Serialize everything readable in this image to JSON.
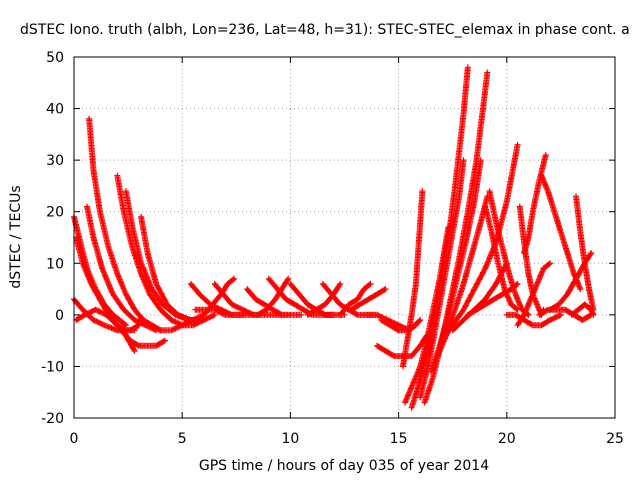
{
  "chart_data": {
    "type": "scatter",
    "title": "dSTEC Iono. truth (albh, Lon=236, Lat=48, h=31): STEC-STEC_elemax in phase cont. a",
    "xlabel": "GPS time / hours of day 035 of year 2014",
    "ylabel": "dSTEC  / TECUs",
    "xlim": [
      0,
      25
    ],
    "ylim": [
      -20,
      50
    ],
    "xticks": [
      0,
      5,
      10,
      15,
      20,
      25
    ],
    "yticks": [
      -20,
      -10,
      0,
      10,
      20,
      30,
      40,
      50
    ],
    "grid": true,
    "marker": "+",
    "color": "#ff0000",
    "series": [
      {
        "x": [
          0.0,
          0.3,
          0.6,
          1.0,
          1.4,
          1.8,
          2.1,
          2.4
        ],
        "y": [
          19,
          14,
          9,
          5,
          2,
          0,
          -1,
          -2
        ]
      },
      {
        "x": [
          0.1,
          0.4,
          0.8,
          1.2,
          1.6,
          2.0,
          2.4,
          2.8
        ],
        "y": [
          15,
          10,
          6,
          3,
          0,
          -2,
          -3,
          -3
        ]
      },
      {
        "x": [
          0.0,
          0.4,
          0.9,
          1.4,
          2.0,
          2.6,
          3.0
        ],
        "y": [
          3,
          1,
          -1,
          -2,
          -3,
          -3,
          -2
        ]
      },
      {
        "x": [
          0.1,
          0.5,
          1.0,
          1.5,
          2.0,
          2.4,
          2.8
        ],
        "y": [
          -1,
          0,
          1,
          0,
          -2,
          -4,
          -7
        ]
      },
      {
        "x": [
          0.6,
          0.9,
          1.3,
          1.8,
          2.3,
          2.8,
          3.3,
          3.8
        ],
        "y": [
          21,
          15,
          9,
          4,
          1,
          -1,
          -2,
          -3
        ]
      },
      {
        "x": [
          0.7,
          0.9,
          1.2,
          1.6,
          2.0,
          2.4,
          2.8,
          3.2,
          3.6,
          4.0
        ],
        "y": [
          38,
          28,
          20,
          13,
          8,
          4,
          1,
          -1,
          -2,
          -3
        ]
      },
      {
        "x": [
          2.0,
          2.3,
          2.7,
          3.1,
          3.5,
          4.0,
          4.5,
          5.0,
          5.5,
          6.0
        ],
        "y": [
          27,
          20,
          13,
          8,
          4,
          1,
          -1,
          -2,
          -2,
          -1
        ]
      },
      {
        "x": [
          2.4,
          2.7,
          3.1,
          3.6,
          4.1,
          4.7,
          5.3,
          6.0
        ],
        "y": [
          24,
          17,
          10,
          5,
          2,
          0,
          -1,
          -1
        ]
      },
      {
        "x": [
          3.1,
          3.4,
          3.8,
          4.3,
          4.8,
          5.4,
          6.0,
          6.5
        ],
        "y": [
          19,
          12,
          6,
          2,
          0,
          -1,
          -1,
          0
        ]
      },
      {
        "x": [
          2.2,
          2.6,
          3.0,
          3.4,
          3.8,
          4.2
        ],
        "y": [
          -3,
          -5,
          -6,
          -6,
          -6,
          -5
        ]
      },
      {
        "x": [
          3.0,
          3.5,
          4.0,
          4.5,
          5.0,
          5.5,
          6.0
        ],
        "y": [
          -1,
          -2,
          -3,
          -3,
          -2,
          -1,
          0
        ]
      },
      {
        "x": [
          5.4,
          5.8,
          6.3,
          6.8,
          7.3,
          7.8
        ],
        "y": [
          6,
          4,
          2,
          1,
          0,
          0
        ]
      },
      {
        "x": [
          5.6,
          6.0,
          6.5,
          7.0,
          7.5,
          8.0,
          8.5
        ],
        "y": [
          1,
          1,
          1,
          0,
          0,
          0,
          0
        ]
      },
      {
        "x": [
          6.5,
          6.9,
          7.3,
          7.8,
          8.3,
          8.8,
          9.3,
          9.8
        ],
        "y": [
          6,
          4,
          2,
          1,
          0,
          0,
          0,
          0
        ]
      },
      {
        "x": [
          6.0,
          6.4,
          6.8,
          7.1,
          7.4
        ],
        "y": [
          0,
          2,
          4,
          6,
          7
        ]
      },
      {
        "x": [
          8.0,
          8.4,
          8.8,
          9.2,
          9.6,
          10.0,
          10.5
        ],
        "y": [
          5,
          3,
          2,
          1,
          0,
          0,
          0
        ]
      },
      {
        "x": [
          8.5,
          8.9,
          9.3,
          9.6,
          9.9
        ],
        "y": [
          0,
          1,
          3,
          5,
          7
        ]
      },
      {
        "x": [
          9.0,
          9.4,
          9.8,
          10.2,
          10.6,
          11.0,
          11.5,
          12.0
        ],
        "y": [
          7,
          5,
          3,
          2,
          1,
          0,
          0,
          0
        ]
      },
      {
        "x": [
          10.0,
          10.4,
          10.8,
          11.2,
          11.6,
          12.0,
          12.5
        ],
        "y": [
          6,
          4,
          2,
          1,
          0,
          0,
          0
        ]
      },
      {
        "x": [
          10.8,
          11.2,
          11.6,
          12.0,
          12.3
        ],
        "y": [
          0,
          1,
          2,
          4,
          6
        ]
      },
      {
        "x": [
          11.5,
          11.9,
          12.3,
          12.7,
          13.1,
          13.5,
          14.0
        ],
        "y": [
          6,
          4,
          2,
          1,
          0,
          0,
          0
        ]
      },
      {
        "x": [
          12.3,
          12.7,
          13.1,
          13.4,
          13.7
        ],
        "y": [
          0,
          2,
          3,
          5,
          6
        ]
      },
      {
        "x": [
          12.8,
          13.2,
          13.6,
          14.0,
          14.4
        ],
        "y": [
          1,
          2,
          3,
          4,
          5
        ]
      },
      {
        "x": [
          13.5,
          14.0,
          14.5,
          15.0,
          15.5,
          16.0
        ],
        "y": [
          0,
          0,
          -1,
          -2,
          -3,
          -1
        ]
      },
      {
        "x": [
          14.2,
          14.6,
          15.0,
          15.4,
          15.8
        ],
        "y": [
          -1,
          -2,
          -3,
          -3,
          -2
        ]
      },
      {
        "x": [
          14.0,
          14.4,
          14.8,
          15.2,
          15.6,
          16.0,
          16.3
        ],
        "y": [
          -6,
          -7,
          -8,
          -8,
          -8,
          -6,
          -4
        ]
      },
      {
        "x": [
          15.2,
          15.4,
          15.6,
          15.8,
          15.9,
          16.0,
          16.1
        ],
        "y": [
          -10,
          -5,
          0,
          6,
          12,
          18,
          24
        ]
      },
      {
        "x": [
          15.3,
          15.6,
          16.0,
          16.3,
          16.6,
          16.9,
          17.1,
          17.3
        ],
        "y": [
          -17,
          -14,
          -10,
          -5,
          1,
          7,
          12,
          17
        ]
      },
      {
        "x": [
          15.6,
          15.9,
          16.2,
          16.5,
          16.8,
          17.1,
          17.4,
          17.7,
          18.0,
          18.2
        ],
        "y": [
          -18,
          -14,
          -9,
          -4,
          3,
          10,
          18,
          28,
          39,
          48
        ]
      },
      {
        "x": [
          16.0,
          16.3,
          16.6,
          16.9,
          17.2,
          17.5,
          17.8,
          18.0
        ],
        "y": [
          -16,
          -11,
          -5,
          2,
          9,
          16,
          23,
          30
        ]
      },
      {
        "x": [
          16.2,
          16.6,
          17.0,
          17.4,
          17.8,
          18.2,
          18.6,
          18.9,
          19.1
        ],
        "y": [
          -17,
          -12,
          -5,
          3,
          11,
          20,
          30,
          40,
          47
        ]
      },
      {
        "x": [
          16.5,
          16.9,
          17.3,
          17.7,
          18.1,
          18.5,
          18.8
        ],
        "y": [
          -11,
          -6,
          0,
          7,
          14,
          22,
          30
        ]
      },
      {
        "x": [
          16.8,
          17.2,
          17.6,
          18.0,
          18.4,
          18.8,
          19.1
        ],
        "y": [
          -8,
          -4,
          1,
          6,
          12,
          18,
          23
        ]
      },
      {
        "x": [
          17.0,
          17.5,
          18.0,
          18.5,
          19.0,
          19.5,
          20.0,
          20.5
        ],
        "y": [
          -5,
          -2,
          1,
          5,
          9,
          14,
          22,
          33
        ]
      },
      {
        "x": [
          17.5,
          18.0,
          18.5,
          19.0,
          19.5,
          20.0
        ],
        "y": [
          -3,
          -1,
          1,
          3,
          6,
          10
        ]
      },
      {
        "x": [
          18.2,
          18.6,
          19.0,
          19.4,
          19.8,
          20.2,
          20.5
        ],
        "y": [
          0,
          1,
          2,
          3,
          4,
          5,
          6
        ]
      },
      {
        "x": [
          19.0,
          19.3,
          19.6,
          19.9,
          20.2,
          20.5
        ],
        "y": [
          21,
          16,
          10,
          5,
          2,
          1
        ]
      },
      {
        "x": [
          19.2,
          19.5,
          19.8,
          20.1,
          20.4,
          20.7,
          21.0
        ],
        "y": [
          24,
          18,
          13,
          8,
          4,
          1,
          0
        ]
      },
      {
        "x": [
          20.0,
          20.4,
          20.8,
          21.2,
          21.6,
          22.0,
          22.5
        ],
        "y": [
          0,
          0,
          -1,
          -2,
          -2,
          -1,
          0
        ]
      },
      {
        "x": [
          20.5,
          20.8,
          21.1,
          21.4,
          21.7,
          22.0
        ],
        "y": [
          -2,
          0,
          3,
          6,
          9,
          10
        ]
      },
      {
        "x": [
          20.6,
          20.8,
          21.0,
          21.2,
          21.4,
          21.6,
          21.7
        ],
        "y": [
          21,
          14,
          8,
          4,
          2,
          0,
          1
        ]
      },
      {
        "x": [
          20.8,
          21.0,
          21.2,
          21.5,
          21.8
        ],
        "y": [
          12,
          15,
          20,
          26,
          31
        ]
      },
      {
        "x": [
          21.6,
          21.9,
          22.2,
          22.5,
          22.8,
          23.1,
          23.4
        ],
        "y": [
          27,
          24,
          20,
          16,
          12,
          8,
          5
        ]
      },
      {
        "x": [
          21.5,
          21.9,
          22.3,
          22.7,
          23.1,
          23.5,
          23.9
        ],
        "y": [
          0,
          1,
          1,
          1,
          0,
          -1,
          0
        ]
      },
      {
        "x": [
          22.0,
          22.4,
          22.8,
          23.2,
          23.6,
          23.9
        ],
        "y": [
          1,
          2,
          4,
          7,
          10,
          12
        ]
      },
      {
        "x": [
          23.2,
          23.4,
          23.6,
          23.8,
          24.0
        ],
        "y": [
          23,
          16,
          10,
          5,
          1
        ]
      },
      {
        "x": [
          23.0,
          23.3,
          23.6,
          23.9,
          24.0
        ],
        "y": [
          0,
          1,
          2,
          1,
          0
        ]
      }
    ]
  }
}
